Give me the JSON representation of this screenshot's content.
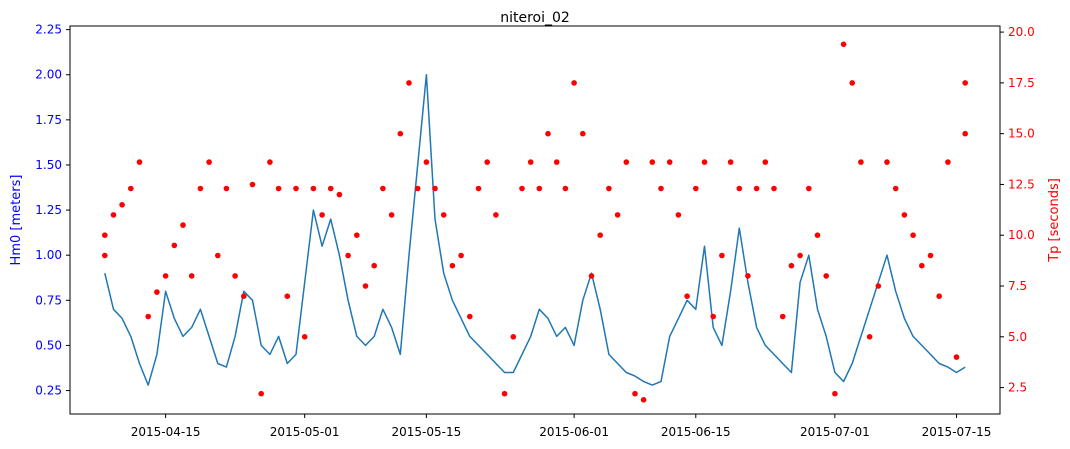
{
  "chart_data": {
    "type": "line+scatter",
    "title": "niteroi_02",
    "x_axis": {
      "type": "date",
      "range": [
        "2015-04-04",
        "2015-07-20"
      ],
      "ticks": [
        "2015-04-15",
        "2015-05-01",
        "2015-05-15",
        "2015-06-01",
        "2015-06-15",
        "2015-07-01",
        "2015-07-15"
      ]
    },
    "y_left": {
      "label": "Hm0 [meters]",
      "color": "#0000ff",
      "range": [
        0.12,
        2.27
      ],
      "ticks": [
        0.25,
        0.5,
        0.75,
        1.0,
        1.25,
        1.5,
        1.75,
        2.0,
        2.25
      ],
      "tick_labels": [
        "0.25",
        "0.50",
        "0.75",
        "1.00",
        "1.25",
        "1.50",
        "1.75",
        "2.00",
        "2.25"
      ]
    },
    "y_right": {
      "label": "Tp [seconds]",
      "color": "#ff0000",
      "range": [
        1.2,
        20.3
      ],
      "ticks": [
        2.5,
        5.0,
        7.5,
        10.0,
        12.5,
        15.0,
        17.5,
        20.0
      ],
      "tick_labels": [
        "2.5",
        "5.0",
        "7.5",
        "10.0",
        "12.5",
        "15.0",
        "17.5",
        "20.0"
      ]
    },
    "series": [
      {
        "name": "Hm0",
        "kind": "line",
        "axis": "left",
        "color": "#1f77b4",
        "points": [
          [
            "2015-04-08",
            0.9
          ],
          [
            "2015-04-09",
            0.7
          ],
          [
            "2015-04-10",
            0.65
          ],
          [
            "2015-04-11",
            0.55
          ],
          [
            "2015-04-12",
            0.4
          ],
          [
            "2015-04-13",
            0.28
          ],
          [
            "2015-04-14",
            0.45
          ],
          [
            "2015-04-15",
            0.8
          ],
          [
            "2015-04-16",
            0.65
          ],
          [
            "2015-04-17",
            0.55
          ],
          [
            "2015-04-18",
            0.6
          ],
          [
            "2015-04-19",
            0.7
          ],
          [
            "2015-04-20",
            0.55
          ],
          [
            "2015-04-21",
            0.4
          ],
          [
            "2015-04-22",
            0.38
          ],
          [
            "2015-04-23",
            0.55
          ],
          [
            "2015-04-24",
            0.8
          ],
          [
            "2015-04-25",
            0.75
          ],
          [
            "2015-04-26",
            0.5
          ],
          [
            "2015-04-27",
            0.45
          ],
          [
            "2015-04-28",
            0.55
          ],
          [
            "2015-04-29",
            0.4
          ],
          [
            "2015-04-30",
            0.45
          ],
          [
            "2015-05-01",
            0.85
          ],
          [
            "2015-05-02",
            1.25
          ],
          [
            "2015-05-03",
            1.05
          ],
          [
            "2015-05-04",
            1.2
          ],
          [
            "2015-05-05",
            1.0
          ],
          [
            "2015-05-06",
            0.75
          ],
          [
            "2015-05-07",
            0.55
          ],
          [
            "2015-05-08",
            0.5
          ],
          [
            "2015-05-09",
            0.55
          ],
          [
            "2015-05-10",
            0.7
          ],
          [
            "2015-05-11",
            0.6
          ],
          [
            "2015-05-12",
            0.45
          ],
          [
            "2015-05-13",
            1.0
          ],
          [
            "2015-05-14",
            1.5
          ],
          [
            "2015-05-15",
            2.0
          ],
          [
            "2015-05-16",
            1.2
          ],
          [
            "2015-05-17",
            0.9
          ],
          [
            "2015-05-18",
            0.75
          ],
          [
            "2015-05-19",
            0.65
          ],
          [
            "2015-05-20",
            0.55
          ],
          [
            "2015-05-21",
            0.5
          ],
          [
            "2015-05-22",
            0.45
          ],
          [
            "2015-05-23",
            0.4
          ],
          [
            "2015-05-24",
            0.35
          ],
          [
            "2015-05-25",
            0.35
          ],
          [
            "2015-05-26",
            0.45
          ],
          [
            "2015-05-27",
            0.55
          ],
          [
            "2015-05-28",
            0.7
          ],
          [
            "2015-05-29",
            0.65
          ],
          [
            "2015-05-30",
            0.55
          ],
          [
            "2015-05-31",
            0.6
          ],
          [
            "2015-06-01",
            0.5
          ],
          [
            "2015-06-02",
            0.75
          ],
          [
            "2015-06-03",
            0.9
          ],
          [
            "2015-06-04",
            0.7
          ],
          [
            "2015-06-05",
            0.45
          ],
          [
            "2015-06-06",
            0.4
          ],
          [
            "2015-06-07",
            0.35
          ],
          [
            "2015-06-08",
            0.33
          ],
          [
            "2015-06-09",
            0.3
          ],
          [
            "2015-06-10",
            0.28
          ],
          [
            "2015-06-11",
            0.3
          ],
          [
            "2015-06-12",
            0.55
          ],
          [
            "2015-06-13",
            0.65
          ],
          [
            "2015-06-14",
            0.75
          ],
          [
            "2015-06-15",
            0.7
          ],
          [
            "2015-06-16",
            1.05
          ],
          [
            "2015-06-17",
            0.6
          ],
          [
            "2015-06-18",
            0.5
          ],
          [
            "2015-06-19",
            0.8
          ],
          [
            "2015-06-20",
            1.15
          ],
          [
            "2015-06-21",
            0.85
          ],
          [
            "2015-06-22",
            0.6
          ],
          [
            "2015-06-23",
            0.5
          ],
          [
            "2015-06-24",
            0.45
          ],
          [
            "2015-06-25",
            0.4
          ],
          [
            "2015-06-26",
            0.35
          ],
          [
            "2015-06-27",
            0.85
          ],
          [
            "2015-06-28",
            1.0
          ],
          [
            "2015-06-29",
            0.7
          ],
          [
            "2015-06-30",
            0.55
          ],
          [
            "2015-07-01",
            0.35
          ],
          [
            "2015-07-02",
            0.3
          ],
          [
            "2015-07-03",
            0.4
          ],
          [
            "2015-07-04",
            0.55
          ],
          [
            "2015-07-05",
            0.7
          ],
          [
            "2015-07-06",
            0.85
          ],
          [
            "2015-07-07",
            1.0
          ],
          [
            "2015-07-08",
            0.8
          ],
          [
            "2015-07-09",
            0.65
          ],
          [
            "2015-07-10",
            0.55
          ],
          [
            "2015-07-11",
            0.5
          ],
          [
            "2015-07-12",
            0.45
          ],
          [
            "2015-07-13",
            0.4
          ],
          [
            "2015-07-14",
            0.38
          ],
          [
            "2015-07-15",
            0.35
          ],
          [
            "2015-07-16",
            0.38
          ]
        ]
      },
      {
        "name": "Tp",
        "kind": "scatter",
        "axis": "right",
        "color": "#ff0000",
        "points": [
          [
            "2015-04-08",
            9.0
          ],
          [
            "2015-04-08",
            10.0
          ],
          [
            "2015-04-09",
            11.0
          ],
          [
            "2015-04-10",
            11.5
          ],
          [
            "2015-04-11",
            12.3
          ],
          [
            "2015-04-12",
            13.6
          ],
          [
            "2015-04-13",
            6.0
          ],
          [
            "2015-04-14",
            7.2
          ],
          [
            "2015-04-15",
            8.0
          ],
          [
            "2015-04-16",
            9.5
          ],
          [
            "2015-04-17",
            10.5
          ],
          [
            "2015-04-18",
            8.0
          ],
          [
            "2015-04-19",
            12.3
          ],
          [
            "2015-04-20",
            13.6
          ],
          [
            "2015-04-21",
            9.0
          ],
          [
            "2015-04-22",
            12.3
          ],
          [
            "2015-04-23",
            8.0
          ],
          [
            "2015-04-24",
            7.0
          ],
          [
            "2015-04-25",
            12.5
          ],
          [
            "2015-04-26",
            2.2
          ],
          [
            "2015-04-27",
            13.6
          ],
          [
            "2015-04-28",
            12.3
          ],
          [
            "2015-04-29",
            7.0
          ],
          [
            "2015-04-30",
            12.3
          ],
          [
            "2015-05-01",
            5.0
          ],
          [
            "2015-05-02",
            12.3
          ],
          [
            "2015-05-03",
            11.0
          ],
          [
            "2015-05-04",
            12.3
          ],
          [
            "2015-05-05",
            12.0
          ],
          [
            "2015-05-06",
            9.0
          ],
          [
            "2015-05-07",
            10.0
          ],
          [
            "2015-05-08",
            7.5
          ],
          [
            "2015-05-09",
            8.5
          ],
          [
            "2015-05-10",
            12.3
          ],
          [
            "2015-05-11",
            11.0
          ],
          [
            "2015-05-12",
            15.0
          ],
          [
            "2015-05-13",
            17.5
          ],
          [
            "2015-05-14",
            12.3
          ],
          [
            "2015-05-15",
            13.6
          ],
          [
            "2015-05-16",
            12.3
          ],
          [
            "2015-05-17",
            11.0
          ],
          [
            "2015-05-18",
            8.5
          ],
          [
            "2015-05-19",
            9.0
          ],
          [
            "2015-05-20",
            6.0
          ],
          [
            "2015-05-21",
            12.3
          ],
          [
            "2015-05-22",
            13.6
          ],
          [
            "2015-05-23",
            11.0
          ],
          [
            "2015-05-24",
            2.2
          ],
          [
            "2015-05-25",
            5.0
          ],
          [
            "2015-05-26",
            12.3
          ],
          [
            "2015-05-27",
            13.6
          ],
          [
            "2015-05-28",
            12.3
          ],
          [
            "2015-05-29",
            15.0
          ],
          [
            "2015-05-30",
            13.6
          ],
          [
            "2015-05-31",
            12.3
          ],
          [
            "2015-06-01",
            17.5
          ],
          [
            "2015-06-02",
            15.0
          ],
          [
            "2015-06-03",
            8.0
          ],
          [
            "2015-06-04",
            10.0
          ],
          [
            "2015-06-05",
            12.3
          ],
          [
            "2015-06-06",
            11.0
          ],
          [
            "2015-06-07",
            13.6
          ],
          [
            "2015-06-08",
            2.2
          ],
          [
            "2015-06-09",
            1.9
          ],
          [
            "2015-06-10",
            13.6
          ],
          [
            "2015-06-11",
            12.3
          ],
          [
            "2015-06-12",
            13.6
          ],
          [
            "2015-06-13",
            11.0
          ],
          [
            "2015-06-14",
            7.0
          ],
          [
            "2015-06-15",
            12.3
          ],
          [
            "2015-06-16",
            13.6
          ],
          [
            "2015-06-17",
            6.0
          ],
          [
            "2015-06-18",
            9.0
          ],
          [
            "2015-06-19",
            13.6
          ],
          [
            "2015-06-20",
            12.3
          ],
          [
            "2015-06-21",
            8.0
          ],
          [
            "2015-06-22",
            12.3
          ],
          [
            "2015-06-23",
            13.6
          ],
          [
            "2015-06-24",
            12.3
          ],
          [
            "2015-06-25",
            6.0
          ],
          [
            "2015-06-26",
            8.5
          ],
          [
            "2015-06-27",
            9.0
          ],
          [
            "2015-06-28",
            12.3
          ],
          [
            "2015-06-29",
            10.0
          ],
          [
            "2015-06-30",
            8.0
          ],
          [
            "2015-07-01",
            2.2
          ],
          [
            "2015-07-02",
            19.4
          ],
          [
            "2015-07-03",
            17.5
          ],
          [
            "2015-07-04",
            13.6
          ],
          [
            "2015-07-05",
            5.0
          ],
          [
            "2015-07-06",
            7.5
          ],
          [
            "2015-07-07",
            13.6
          ],
          [
            "2015-07-08",
            12.3
          ],
          [
            "2015-07-09",
            11.0
          ],
          [
            "2015-07-10",
            10.0
          ],
          [
            "2015-07-11",
            8.5
          ],
          [
            "2015-07-12",
            9.0
          ],
          [
            "2015-07-13",
            7.0
          ],
          [
            "2015-07-14",
            13.6
          ],
          [
            "2015-07-15",
            4.0
          ],
          [
            "2015-07-16",
            17.5
          ],
          [
            "2015-07-16",
            15.0
          ]
        ]
      }
    ]
  }
}
